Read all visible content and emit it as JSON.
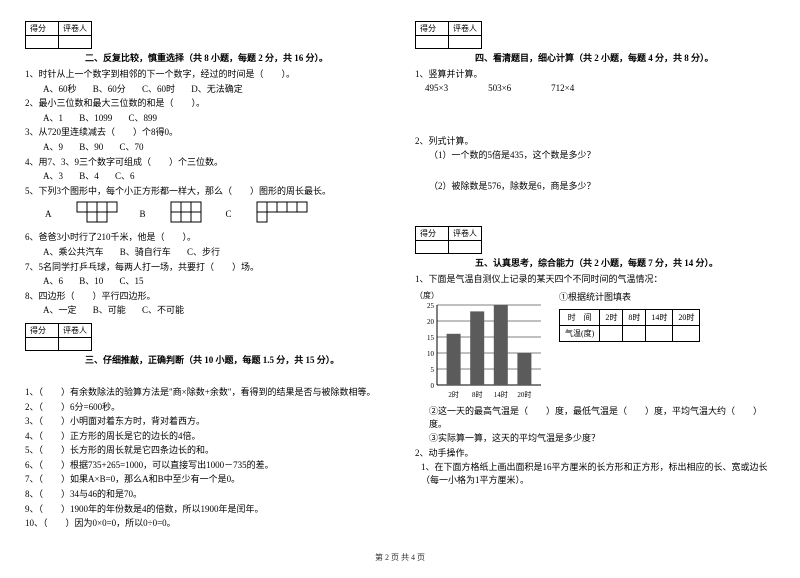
{
  "scorebox": {
    "score": "得分",
    "reviewer": "评卷人"
  },
  "section2": {
    "title": "二、反复比较，慎重选择（共 8 小题，每题 2 分，共 16 分）。",
    "q1": "1、时针从上一个数字到相邻的下一个数字，经过的时间是（　　）。",
    "q1a": "A、60秒",
    "q1b": "B、60分",
    "q1c": "C、60时",
    "q1d": "D、无法确定",
    "q2": "2、最小三位数和最大三位数的和是（　　）。",
    "q2a": "A、1",
    "q2b": "B、1099",
    "q2c": "C、899",
    "q3": "3、从720里连续减去（　　）个8得0。",
    "q3a": "A、9",
    "q3b": "B、90",
    "q3c": "C、70",
    "q4": "4、用7、3、9三个数字可组成（　　）个三位数。",
    "q4a": "A、3",
    "q4b": "B、4",
    "q4c": "C、6",
    "q5": "5、下列3个图形中，每个小正方形都一样大，那么（　　）图形的周长最长。",
    "label_a": "A",
    "label_b": "B",
    "label_c": "C",
    "q6": "6、爸爸3小时行了210千米，他是（　　）。",
    "q6a": "A、乘公共汽车",
    "q6b": "B、骑自行车",
    "q6c": "C、步行",
    "q7": "7、5名同学打乒乓球，每两人打一场，共要打（　　）场。",
    "q7a": "A、6",
    "q7b": "B、10",
    "q7c": "C、15",
    "q8": "8、四边形（　　）平行四边形。",
    "q8a": "A、一定",
    "q8b": "B、可能",
    "q8c": "C、不可能"
  },
  "section3": {
    "title": "三、仔细推敲，正确判断（共 10 小题，每题 1.5 分，共 15 分）。",
    "q1": "1、（　　）有余数除法的验算方法是\"商×除数+余数\"，看得到的结果是否与被除数相等。",
    "q2": "2、（　　）6分=600秒。",
    "q3": "3、（　　）小明面对着东方时，背对着西方。",
    "q4": "4、（　　）正方形的周长是它的边长的4倍。",
    "q5": "5、（　　）长方形的周长就是它四条边长的和。",
    "q6": "6、（　　）根据735+265=1000，可以直接写出1000－735的差。",
    "q7": "7、（　　）如果A×B=0，那么A和B中至少有一个是0。",
    "q8": "8、（　　）34与46的和是70。",
    "q9": "9、（　　）1900年的年份数是4的倍数，所以1900年是闰年。",
    "q10": "10、（　　）因为0×0=0，所以0÷0=0。"
  },
  "section4": {
    "title": "四、看清题目，细心计算（共 2 小题，每题 4 分，共 8 分）。",
    "q1": "1、竖算并计算。",
    "c1": "495×3",
    "c2": "503×6",
    "c3": "712×4",
    "q2": "2、列式计算。",
    "q2a": "（1）一个数的5倍是435，这个数是多少？",
    "q2b": "（2）被除数是576，除数是6，商是多少？"
  },
  "section5": {
    "title": "五、认真思考，综合能力（共 2 小题，每题 7 分，共 14 分）。",
    "q1": "1、下面是气温自测仪上记录的某天四个不同时间的气温情况：",
    "chart": {
      "ylabel": "（度）",
      "fill_title": "①根据统计图填表",
      "yticks": [
        0,
        5,
        10,
        15,
        20,
        25
      ],
      "xticks": [
        "2时",
        "8时",
        "14时",
        "20时"
      ],
      "bars": [
        16,
        23,
        25,
        10
      ],
      "bar_color": "#5b5b5b",
      "grid_color": "#000"
    },
    "table": {
      "h1": "时　间",
      "t1": "2时",
      "t2": "8时",
      "t3": "14时",
      "t4": "20时",
      "h2": "气温(度)"
    },
    "q1b": "②这一天的最高气温是（　　）度，最低气温是（　　）度，平均气温大约（　　）度。",
    "q1c": "③实际算一算，这天的平均气温是多少度？",
    "q2": "2、动手操作。",
    "q2a": "1、在下面方格纸上画出面积是16平方厘米的长方形和正方形，标出相应的长、宽或边长（每一小格为1平方厘米）。"
  },
  "footer": "第 2 页 共 4 页"
}
